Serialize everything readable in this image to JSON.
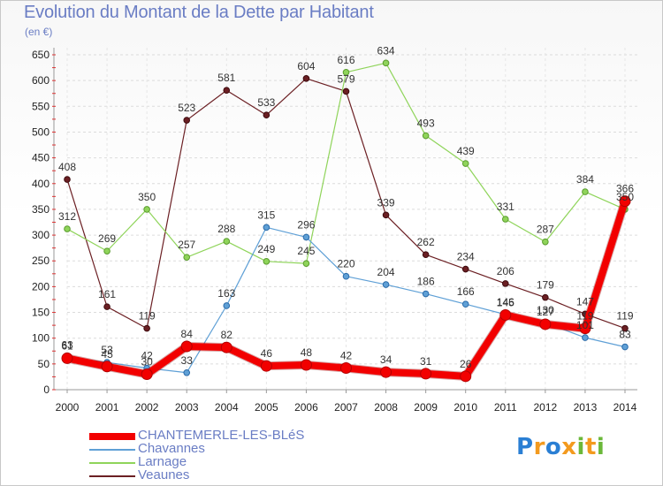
{
  "title": "Evolution du Montant de la Dette par Habitant",
  "subtitle": "(en €)",
  "logo": {
    "text": "Proxiti",
    "colors": [
      "#2a7fd4",
      "#f39a1e",
      "#2a7fd4",
      "#f39a1e",
      "#6bb83a",
      "#f39a1e",
      "#6bb83a"
    ]
  },
  "chart_data": {
    "type": "line",
    "title": "Evolution du Montant de la Dette par Habitant",
    "subtitle": "(en €)",
    "x": [
      "2000",
      "2001",
      "2002",
      "2003",
      "2004",
      "2005",
      "2006",
      "2007",
      "2008",
      "2009",
      "2010",
      "2011",
      "2012",
      "2013",
      "2014"
    ],
    "y_ticks": [
      "0",
      "50",
      "100",
      "150",
      "200",
      "250",
      "300",
      "350",
      "400",
      "450",
      "500",
      "550",
      "600",
      "650"
    ],
    "ylim": [
      0,
      650
    ],
    "grid": true,
    "legend_position": "bottom-left",
    "series": [
      {
        "name": "Veaunes",
        "color": "#6b1f23",
        "width": 1.2,
        "values": [
          408,
          161,
          119,
          523,
          581,
          533,
          604,
          579,
          339,
          262,
          234,
          206,
          179,
          147,
          119
        ]
      },
      {
        "name": "Larnage",
        "color": "#8fd45a",
        "width": 1.2,
        "values": [
          312,
          269,
          350,
          257,
          288,
          249,
          245,
          616,
          634,
          493,
          439,
          331,
          287,
          384,
          350
        ]
      },
      {
        "name": "Chavannes",
        "color": "#5fa0d6",
        "width": 1.2,
        "values": [
          63,
          53,
          42,
          33,
          163,
          315,
          296,
          220,
          204,
          186,
          166,
          146,
          130,
          101,
          83
        ]
      },
      {
        "name": "CHANTEMERLE-LES-BLéS",
        "color": "#f20000",
        "width": 8,
        "main": true,
        "values": [
          61,
          45,
          30,
          84,
          82,
          46,
          48,
          42,
          34,
          31,
          26,
          145,
          127,
          119,
          366
        ]
      }
    ],
    "legend_order": [
      "CHANTEMERLE-LES-BLéS",
      "Chavannes",
      "Larnage",
      "Veaunes"
    ]
  }
}
